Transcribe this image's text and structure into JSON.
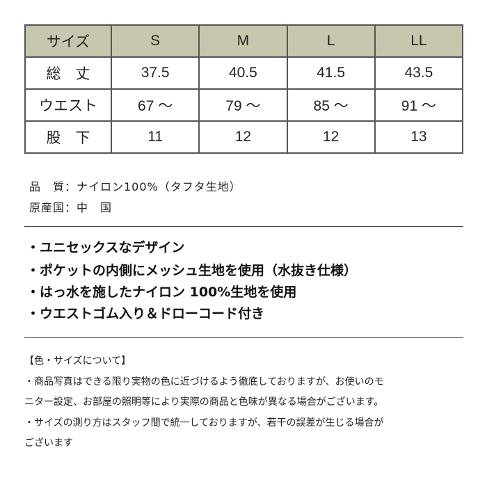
{
  "table": {
    "header": [
      "サイズ",
      "S",
      "M",
      "L",
      "LL"
    ],
    "rows": [
      [
        "総　丈",
        "37.5",
        "40.5",
        "41.5",
        "43.5"
      ],
      [
        "ウエスト",
        "67 ～",
        "79 ～",
        "85 ～",
        "91 ～"
      ],
      [
        "股　下",
        "11",
        "12",
        "12",
        "13"
      ]
    ]
  },
  "spec": {
    "material": "品　質：ナイロン100%（タフタ生地）",
    "origin": "原産国：中　国"
  },
  "features": [
    "・ユニセックスなデザイン",
    "・ポケットの内側にメッシュ生地を使用（水抜き仕様）",
    "・はっ水を施したナイロン 100%生地を使用",
    "・ウエストゴム入り＆ドローコード付き"
  ],
  "notes": [
    "【色・サイズについて】",
    "・商品写真はできる限り実物の色に近づけるよう徹底しておりますが、お使いのモ",
    "ニター設定、お部屋の照明等により実際の商品と色味が異なる場合がございます。",
    "・サイズの測り方はスタッフ間で統一しておりますが、若干の誤差が生じる場合が",
    "ございます"
  ],
  "colors": {
    "header_bg": "#c7c6ae"
  }
}
